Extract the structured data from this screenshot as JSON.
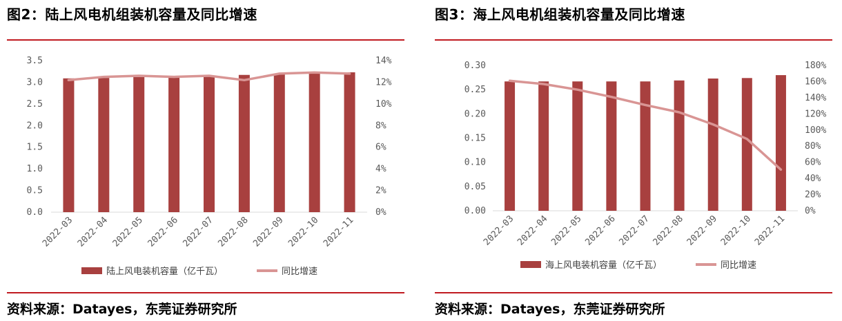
{
  "colors": {
    "bar": "#a8403f",
    "line": "#d99594",
    "rule": "#c0191f",
    "axis": "#d9d9d9",
    "text": "#595959"
  },
  "charts": [
    {
      "title": "图2：陆上风电机组装机容量及同比增速",
      "source": "资料来源：Datayes，东莞证券研究所",
      "chart_data": {
        "type": "bar",
        "categories": [
          "2022-03",
          "2022-04",
          "2022-05",
          "2022-06",
          "2022-07",
          "2022-08",
          "2022-09",
          "2022-10",
          "2022-11"
        ],
        "series": [
          {
            "name": "陆上风电装机容量（亿千瓦）",
            "type": "bar",
            "axis": "left",
            "values": [
              3.09,
              3.1,
              3.12,
              3.13,
              3.15,
              3.17,
              3.19,
              3.21,
              3.23
            ]
          },
          {
            "name": "同比增速",
            "type": "line",
            "axis": "right",
            "values": [
              12.2,
              12.5,
              12.6,
              12.5,
              12.6,
              12.2,
              12.8,
              12.9,
              12.8
            ]
          }
        ],
        "left_axis": {
          "min": 0,
          "max": 3.5,
          "ticks": [
            "0.0",
            "0.5",
            "1.0",
            "1.5",
            "2.0",
            "2.5",
            "3.0",
            "3.5"
          ]
        },
        "right_axis": {
          "min": 0,
          "max": 14,
          "ticks": [
            "0%",
            "2%",
            "4%",
            "6%",
            "8%",
            "10%",
            "12%",
            "14%"
          ]
        },
        "grid": false,
        "legend_position": "bottom"
      }
    },
    {
      "title": "图3：海上风电机组装机容量及同比增速",
      "source": "资料来源：Datayes，东莞证券研究所",
      "chart_data": {
        "type": "bar",
        "categories": [
          "2022-03",
          "2022-04",
          "2022-05",
          "2022-06",
          "2022-07",
          "2022-08",
          "2022-09",
          "2022-10",
          "2022-11"
        ],
        "series": [
          {
            "name": "海上风电装机容量（亿千瓦）",
            "type": "bar",
            "axis": "left",
            "values": [
              0.267,
              0.267,
              0.267,
              0.267,
              0.267,
              0.269,
              0.273,
              0.274,
              0.28
            ]
          },
          {
            "name": "同比增速",
            "type": "line",
            "axis": "right",
            "values": [
              161,
              157,
              150,
              141,
              131,
              122,
              107,
              89,
              51
            ]
          }
        ],
        "left_axis": {
          "min": 0,
          "max": 0.3,
          "ticks": [
            "0.00",
            "0.05",
            "0.10",
            "0.15",
            "0.20",
            "0.25",
            "0.30"
          ]
        },
        "right_axis": {
          "min": 0,
          "max": 180,
          "ticks": [
            "0%",
            "20%",
            "40%",
            "60%",
            "80%",
            "100%",
            "120%",
            "140%",
            "160%",
            "180%"
          ]
        },
        "grid": false,
        "legend_position": "bottom"
      }
    }
  ]
}
